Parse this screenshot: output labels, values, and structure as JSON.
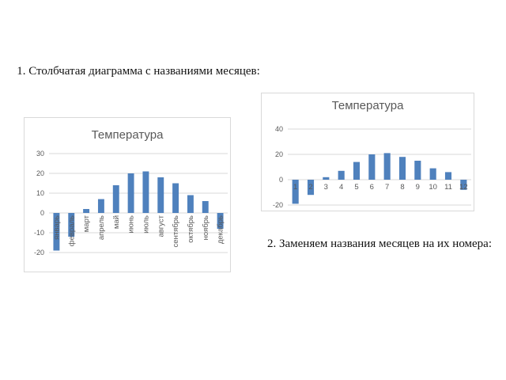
{
  "captions": {
    "first": "1. Столбчатая диаграмма с названиями месяцев:",
    "second": "2. Заменяем названия месяцев на их номера:"
  },
  "colors": {
    "bar": "#4f81bd",
    "grid": "#d9d9d9",
    "text": "#595959"
  },
  "chart_data": [
    {
      "type": "bar",
      "title": "Температура",
      "categories": [
        "январь",
        "февраль",
        "март",
        "апрель",
        "май",
        "июнь",
        "июль",
        "август",
        "сентябрь",
        "октябрь",
        "ноябрь",
        "декабрь"
      ],
      "values": [
        -19,
        -12,
        2,
        7,
        14,
        20,
        21,
        18,
        15,
        9,
        6,
        -8
      ],
      "ylim": [
        -20,
        30
      ],
      "yticks": [
        -20,
        -10,
        0,
        10,
        20,
        30
      ],
      "grid": true
    },
    {
      "type": "bar",
      "title": "Температура",
      "categories": [
        "1",
        "2",
        "3",
        "4",
        "5",
        "6",
        "7",
        "8",
        "9",
        "10",
        "11",
        "12"
      ],
      "values": [
        -19,
        -12,
        2,
        7,
        14,
        20,
        21,
        18,
        15,
        9,
        6,
        -8
      ],
      "ylim": [
        -20,
        40
      ],
      "yticks": [
        -20,
        0,
        20,
        40
      ],
      "grid": true
    }
  ]
}
